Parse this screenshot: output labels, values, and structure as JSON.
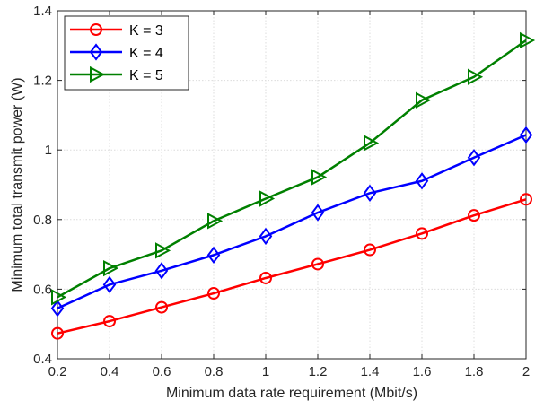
{
  "chart_data": {
    "type": "line",
    "xlabel": "Minimum data rate requirement (Mbit/s)",
    "ylabel": "Minimum total transmit power (W)",
    "xlim": [
      0.2,
      2
    ],
    "ylim": [
      0.4,
      1.4
    ],
    "xticks": [
      "0.2",
      "0.4",
      "0.6",
      "0.8",
      "1",
      "1.2",
      "1.4",
      "1.6",
      "1.8",
      "2"
    ],
    "yticks": [
      "0.4",
      "0.6",
      "0.8",
      "1",
      "1.2",
      "1.4"
    ],
    "grid": true,
    "legend_position": "top-left",
    "x": [
      0.2,
      0.4,
      0.6,
      0.8,
      1.0,
      1.2,
      1.4,
      1.6,
      1.8,
      2.0
    ],
    "series": [
      {
        "name": "K = 3",
        "color": "#ff0000",
        "marker": "circle",
        "values": [
          0.473,
          0.508,
          0.548,
          0.588,
          0.632,
          0.672,
          0.713,
          0.76,
          0.812,
          0.858
        ]
      },
      {
        "name": "K = 4",
        "color": "#0000ff",
        "marker": "diamond",
        "values": [
          0.545,
          0.613,
          0.653,
          0.698,
          0.752,
          0.82,
          0.876,
          0.911,
          0.978,
          1.043
        ]
      },
      {
        "name": "K = 5",
        "color": "#008000",
        "marker": "triangle-right",
        "values": [
          0.577,
          0.66,
          0.711,
          0.796,
          0.86,
          0.922,
          1.02,
          1.143,
          1.21,
          1.315
        ]
      }
    ]
  }
}
